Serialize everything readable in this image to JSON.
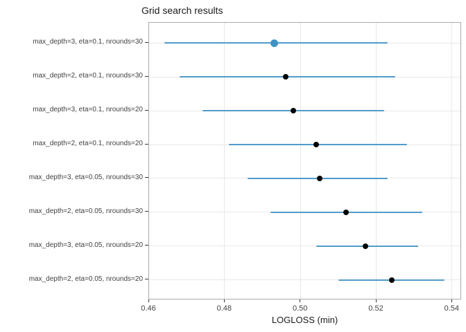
{
  "chart_data": {
    "type": "scatter",
    "title": "Grid search results",
    "xlabel": "LOGLOSS (min)",
    "ylabel": "",
    "xlim": [
      0.46,
      0.5425
    ],
    "xticks": [
      "0.46",
      "0.48",
      "0.50",
      "0.52",
      "0.54"
    ],
    "xtick_values": [
      0.46,
      0.48,
      0.5,
      0.52,
      0.54
    ],
    "grid": true,
    "legend": "none",
    "points": [
      {
        "label": "max_depth=3, eta=0.1, nrounds=30",
        "value": 0.493,
        "low": 0.464,
        "high": 0.523,
        "highlighted": true
      },
      {
        "label": "max_depth=2, eta=0.1, nrounds=30",
        "value": 0.496,
        "low": 0.468,
        "high": 0.525,
        "highlighted": false
      },
      {
        "label": "max_depth=3, eta=0.1, nrounds=20",
        "value": 0.498,
        "low": 0.474,
        "high": 0.522,
        "highlighted": false
      },
      {
        "label": "max_depth=2, eta=0.1, nrounds=20",
        "value": 0.504,
        "low": 0.481,
        "high": 0.528,
        "highlighted": false
      },
      {
        "label": "max_depth=3, eta=0.05, nrounds=30",
        "value": 0.505,
        "low": 0.486,
        "high": 0.523,
        "highlighted": false
      },
      {
        "label": "max_depth=2, eta=0.05, nrounds=30",
        "value": 0.512,
        "low": 0.492,
        "high": 0.532,
        "highlighted": false
      },
      {
        "label": "max_depth=3, eta=0.05, nrounds=20",
        "value": 0.517,
        "low": 0.504,
        "high": 0.531,
        "highlighted": false
      },
      {
        "label": "max_depth=2, eta=0.05, nrounds=20",
        "value": 0.524,
        "low": 0.51,
        "high": 0.538,
        "highlighted": false
      }
    ],
    "colors": {
      "errorbar": "#4f9bc9",
      "point": "#000000",
      "highlight_point": "#3f92c4",
      "gridline": "#e8e8e8",
      "panel_border": "#a9a9a9",
      "axis_text": "#404040",
      "tick": "#333333"
    }
  }
}
